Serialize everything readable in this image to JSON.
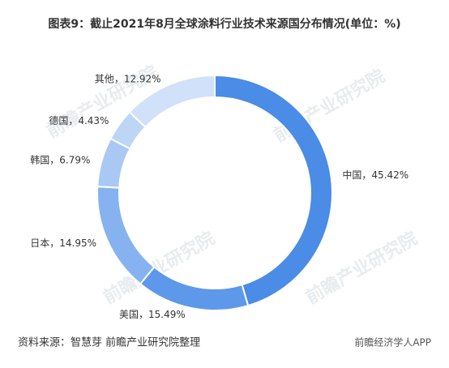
{
  "chart_data": {
    "type": "donut",
    "title": "图表9：截止2021年8月全球涂料行业技术来源国分布情况(单位：%)",
    "categories": [
      "中国",
      "美国",
      "日本",
      "韩国",
      "德国",
      "其他"
    ],
    "values": [
      45.42,
      15.49,
      14.95,
      6.79,
      4.43,
      12.92
    ],
    "value_labels": [
      "，45.42%",
      "，15.49%",
      "，14.95%",
      "，6.79%",
      "，4.43%",
      "，12.92%"
    ],
    "colors": [
      "#4a8ce6",
      "#5d98ea",
      "#86b3ef",
      "#a9c9f4",
      "#bdd6f6",
      "#d0e1f9"
    ],
    "source": "资料来源：智慧芽 前瞻产业研究院整理",
    "watermark": "前瞻产业研究院",
    "footer_brand": "前瞻经济学人APP"
  }
}
